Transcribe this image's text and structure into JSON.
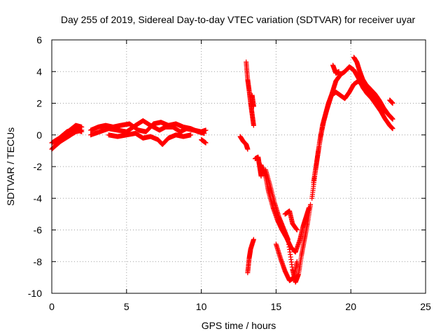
{
  "chart_data": {
    "type": "scatter",
    "title": "Day 255 of 2019, Sidereal Day-to-day VTEC variation (SDTVAR) for receiver uyar",
    "xlabel": "GPS time / hours",
    "ylabel": "SDTVAR / TECUs",
    "xlim": [
      0,
      25
    ],
    "ylim": [
      -10,
      6
    ],
    "xticks": [
      0,
      5,
      10,
      15,
      20,
      25
    ],
    "yticks": [
      -10,
      -8,
      -6,
      -4,
      -2,
      0,
      2,
      4,
      6
    ],
    "grid": true,
    "marker": "+",
    "color": "#ff0000",
    "series": [
      {
        "name": "SDTVAR",
        "segments": [
          [
            [
              0.0,
              -0.9
            ],
            [
              0.4,
              -0.5
            ],
            [
              0.8,
              -0.1
            ],
            [
              1.2,
              0.3
            ],
            [
              1.6,
              0.6
            ],
            [
              2.0,
              0.5
            ]
          ],
          [
            [
              0.0,
              -0.5
            ],
            [
              0.5,
              -0.2
            ],
            [
              1.0,
              0.2
            ],
            [
              1.5,
              0.4
            ],
            [
              2.0,
              0.2
            ]
          ],
          [
            [
              0.1,
              -0.8
            ],
            [
              0.6,
              -0.4
            ],
            [
              1.1,
              -0.1
            ],
            [
              1.6,
              0.2
            ],
            [
              2.0,
              0.3
            ]
          ],
          [
            [
              2.6,
              0.0
            ],
            [
              3.2,
              0.2
            ],
            [
              3.8,
              0.4
            ],
            [
              4.4,
              0.3
            ],
            [
              5.0,
              0.2
            ],
            [
              5.6,
              0.6
            ],
            [
              6.1,
              0.9
            ],
            [
              6.6,
              0.6
            ],
            [
              7.2,
              0.3
            ],
            [
              7.6,
              0.5
            ],
            [
              8.1,
              0.5
            ],
            [
              8.6,
              0.2
            ],
            [
              9.0,
              0.4
            ],
            [
              9.5,
              0.3
            ],
            [
              10.0,
              0.2
            ],
            [
              10.3,
              0.3
            ]
          ],
          [
            [
              2.6,
              0.3
            ],
            [
              3.1,
              0.5
            ],
            [
              3.6,
              0.6
            ],
            [
              4.1,
              0.5
            ],
            [
              4.6,
              0.6
            ],
            [
              5.2,
              0.7
            ],
            [
              5.8,
              0.3
            ],
            [
              6.3,
              0.2
            ],
            [
              6.8,
              0.7
            ],
            [
              7.3,
              0.8
            ],
            [
              7.8,
              0.6
            ],
            [
              8.3,
              0.7
            ],
            [
              8.8,
              0.5
            ],
            [
              9.3,
              0.4
            ],
            [
              9.8,
              0.2
            ],
            [
              10.2,
              0.1
            ]
          ],
          [
            [
              3.8,
              0.0
            ],
            [
              4.4,
              -0.1
            ],
            [
              5.0,
              0.0
            ],
            [
              5.6,
              0.1
            ],
            [
              6.1,
              -0.2
            ],
            [
              6.6,
              -0.1
            ],
            [
              7.1,
              -0.3
            ],
            [
              7.4,
              -0.6
            ],
            [
              7.8,
              -0.2
            ],
            [
              8.3,
              0.0
            ],
            [
              8.8,
              -0.1
            ],
            [
              9.3,
              0.0
            ]
          ],
          [
            [
              10.0,
              -0.3
            ],
            [
              10.3,
              -0.5
            ]
          ],
          [
            [
              12.6,
              -0.1
            ],
            [
              12.8,
              -0.4
            ],
            [
              13.0,
              -0.6
            ],
            [
              13.1,
              -0.9
            ]
          ],
          [
            [
              13.0,
              4.6
            ],
            [
              13.1,
              3.5
            ],
            [
              13.2,
              2.8
            ],
            [
              13.3,
              2.0
            ],
            [
              13.4,
              1.3
            ],
            [
              13.5,
              0.6
            ]
          ],
          [
            [
              13.4,
              2.5
            ],
            [
              13.5,
              1.8
            ]
          ],
          [
            [
              13.1,
              -8.7
            ],
            [
              13.2,
              -7.8
            ],
            [
              13.3,
              -7.2
            ],
            [
              13.5,
              -6.6
            ]
          ],
          [
            [
              13.6,
              -1.5
            ],
            [
              13.8,
              -1.4
            ],
            [
              13.9,
              -2.0
            ],
            [
              14.0,
              -2.6
            ]
          ],
          [
            [
              14.0,
              -1.9
            ],
            [
              14.3,
              -2.6
            ],
            [
              14.5,
              -3.6
            ],
            [
              14.8,
              -4.6
            ],
            [
              15.1,
              -5.4
            ],
            [
              15.4,
              -6.0
            ],
            [
              15.7,
              -6.5
            ],
            [
              16.0,
              -7.1
            ],
            [
              16.3,
              -7.4
            ],
            [
              16.6,
              -6.6
            ],
            [
              16.8,
              -5.8
            ],
            [
              17.0,
              -5.2
            ],
            [
              17.2,
              -4.6
            ]
          ],
          [
            [
              14.3,
              -2.2
            ],
            [
              14.6,
              -3.2
            ],
            [
              14.9,
              -4.3
            ],
            [
              15.2,
              -5.2
            ],
            [
              15.5,
              -5.9
            ],
            [
              15.8,
              -6.6
            ],
            [
              16.1,
              -8.5
            ],
            [
              16.3,
              -9.3
            ],
            [
              16.5,
              -8.8
            ],
            [
              16.7,
              -7.6
            ],
            [
              16.9,
              -6.6
            ],
            [
              17.1,
              -5.6
            ],
            [
              17.3,
              -4.4
            ]
          ],
          [
            [
              15.0,
              -6.9
            ],
            [
              15.3,
              -7.8
            ],
            [
              15.6,
              -8.6
            ],
            [
              15.9,
              -9.2
            ],
            [
              16.2,
              -9.0
            ],
            [
              16.4,
              -8.0
            ]
          ],
          [
            [
              15.6,
              -5.0
            ],
            [
              15.9,
              -4.8
            ],
            [
              16.1,
              -5.6
            ],
            [
              16.4,
              -6.0
            ]
          ],
          [
            [
              17.4,
              -4.0
            ],
            [
              17.6,
              -2.5
            ],
            [
              17.8,
              -1.2
            ],
            [
              18.0,
              0.0
            ],
            [
              18.2,
              0.9
            ],
            [
              18.4,
              1.6
            ],
            [
              18.6,
              2.2
            ],
            [
              18.8,
              2.8
            ],
            [
              19.0,
              3.4
            ],
            [
              19.3,
              3.8
            ],
            [
              19.6,
              4.0
            ],
            [
              19.9,
              4.3
            ],
            [
              20.2,
              4.1
            ],
            [
              20.5,
              3.6
            ],
            [
              20.8,
              3.0
            ],
            [
              21.1,
              2.6
            ],
            [
              21.4,
              2.3
            ],
            [
              21.7,
              1.9
            ],
            [
              22.0,
              1.5
            ],
            [
              22.3,
              1.0
            ],
            [
              22.6,
              0.6
            ],
            [
              22.8,
              0.4
            ]
          ],
          [
            [
              17.5,
              -3.0
            ],
            [
              17.7,
              -1.8
            ],
            [
              17.9,
              -0.5
            ],
            [
              18.1,
              0.6
            ],
            [
              18.3,
              1.3
            ],
            [
              18.5,
              2.0
            ],
            [
              18.7,
              2.5
            ],
            [
              19.0,
              2.7
            ],
            [
              19.3,
              2.5
            ],
            [
              19.6,
              2.3
            ],
            [
              19.9,
              2.7
            ],
            [
              20.2,
              3.2
            ],
            [
              20.5,
              3.4
            ],
            [
              20.8,
              3.1
            ],
            [
              21.1,
              2.9
            ],
            [
              21.4,
              2.5
            ],
            [
              21.7,
              2.2
            ],
            [
              22.0,
              1.8
            ],
            [
              22.3,
              1.5
            ],
            [
              22.6,
              1.2
            ],
            [
              22.8,
              1.0
            ]
          ],
          [
            [
              18.8,
              4.4
            ],
            [
              19.0,
              3.9
            ],
            [
              19.2,
              4.0
            ]
          ],
          [
            [
              20.2,
              4.9
            ],
            [
              20.4,
              4.6
            ],
            [
              20.6,
              4.0
            ],
            [
              20.8,
              3.5
            ],
            [
              21.0,
              3.2
            ],
            [
              21.3,
              2.9
            ],
            [
              21.6,
              2.6
            ],
            [
              21.9,
              2.2
            ],
            [
              22.2,
              1.7
            ],
            [
              22.5,
              1.3
            ],
            [
              22.8,
              1.0
            ]
          ],
          [
            [
              22.6,
              2.2
            ],
            [
              22.8,
              2.0
            ]
          ]
        ]
      }
    ]
  }
}
